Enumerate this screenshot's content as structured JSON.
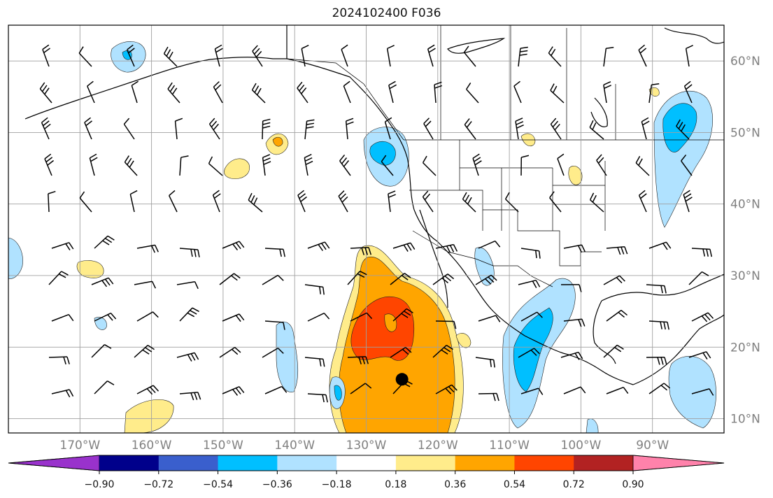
{
  "title": "2024102400 F036",
  "map": {
    "lon_range": [
      -180,
      -80
    ],
    "lat_range": [
      8,
      65
    ],
    "lon_labels": [
      "170°W",
      "160°W",
      "150°W",
      "140°W",
      "130°W",
      "120°W",
      "110°W",
      "100°W",
      "90°W"
    ],
    "lat_labels": [
      "10°N",
      "20°N",
      "30°N",
      "40°N",
      "50°N",
      "60°N"
    ],
    "gridlines": true,
    "marker": {
      "lon": -125,
      "lat": 15.5,
      "color": "#000000"
    }
  },
  "colorbar": {
    "orientation": "horizontal",
    "colors": [
      "#9932cc",
      "#00008b",
      "#3a5fcd",
      "#00bfff",
      "#b0e2ff",
      "#ffffff",
      "#ffec8b",
      "#ffa500",
      "#ff4500",
      "#b22222",
      "#ff82ab"
    ],
    "ticks": [
      "−0.90",
      "−0.72",
      "−0.54",
      "−0.36",
      "−0.18",
      "0.18",
      "0.36",
      "0.54",
      "0.72",
      "0.90"
    ]
  }
}
